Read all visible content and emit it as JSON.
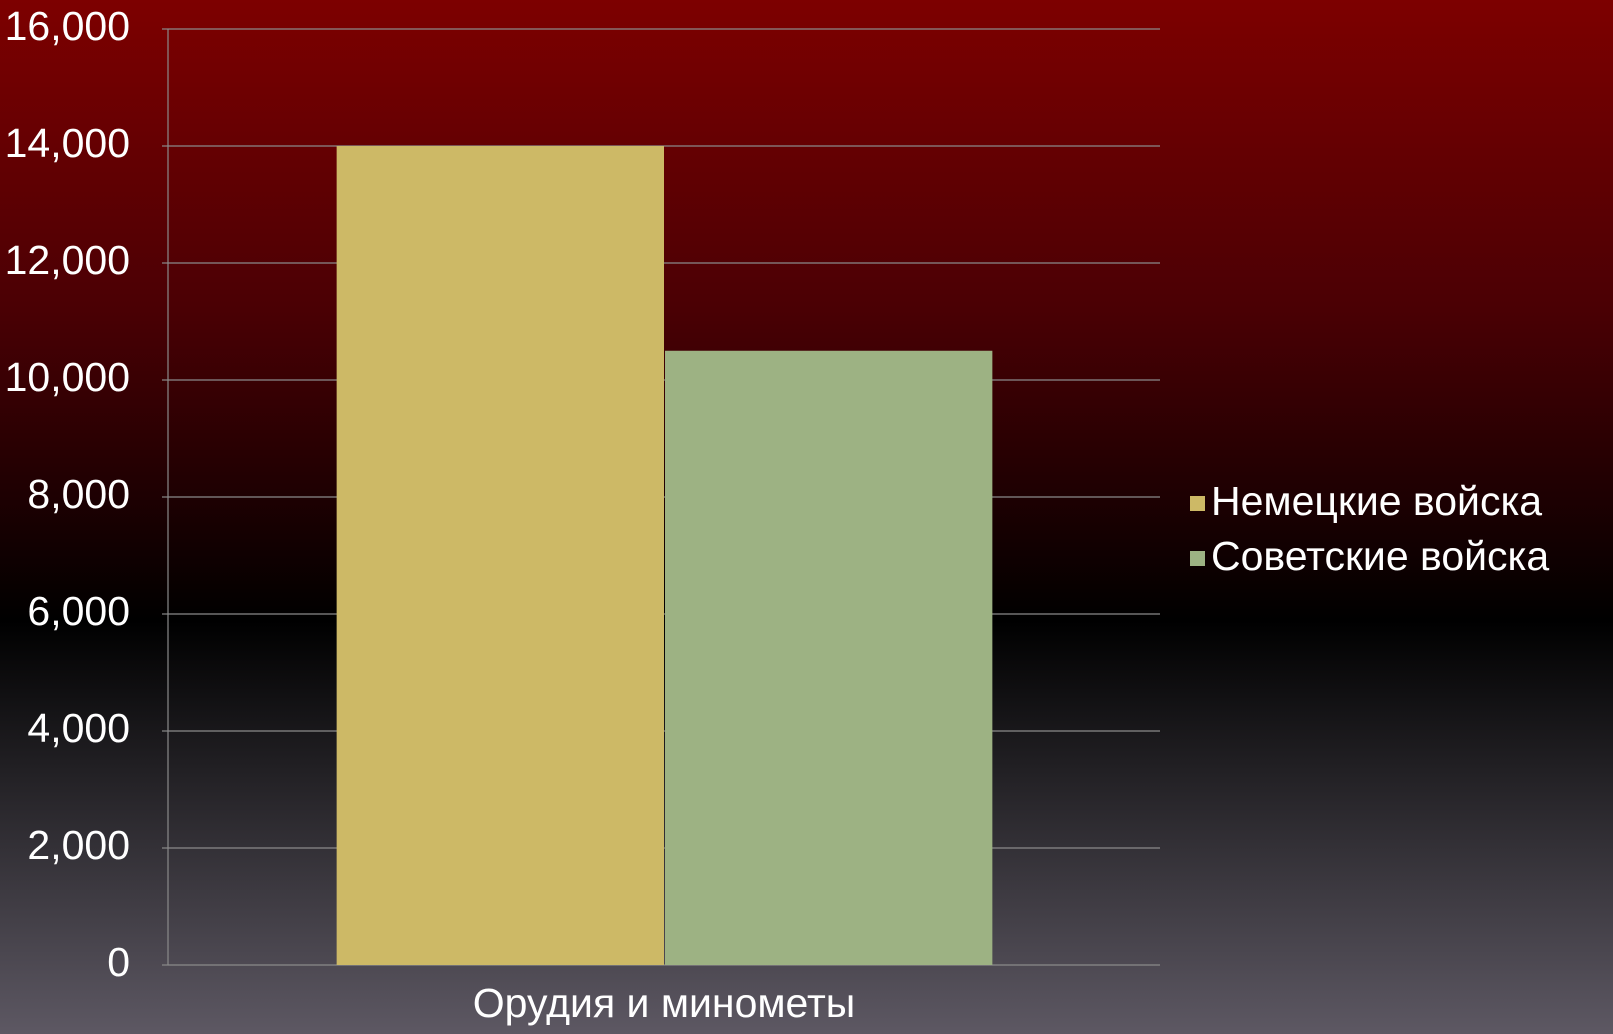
{
  "chart_data": {
    "type": "bar",
    "categories": [
      "Орудия и минометы"
    ],
    "series": [
      {
        "name": "Немецкие войска",
        "color": "#cdb966",
        "values": [
          14000
        ]
      },
      {
        "name": "Советские войска",
        "color": "#9db283",
        "values": [
          10500
        ]
      }
    ],
    "ylim": [
      0,
      16000
    ],
    "yticks": [
      0,
      {
        "value": 2000,
        "label": "2,000"
      },
      {
        "value": 4000,
        "label": "4,000"
      },
      {
        "value": 6000,
        "label": "6,000"
      },
      {
        "value": 8000,
        "label": "8,000"
      },
      {
        "value": 10000,
        "label": "10,000"
      },
      {
        "value": 12000,
        "label": "12,000"
      },
      {
        "value": 14000,
        "label": "14,000"
      },
      {
        "value": 16000,
        "label": "16,000"
      }
    ],
    "grid": true,
    "legend": "right"
  }
}
